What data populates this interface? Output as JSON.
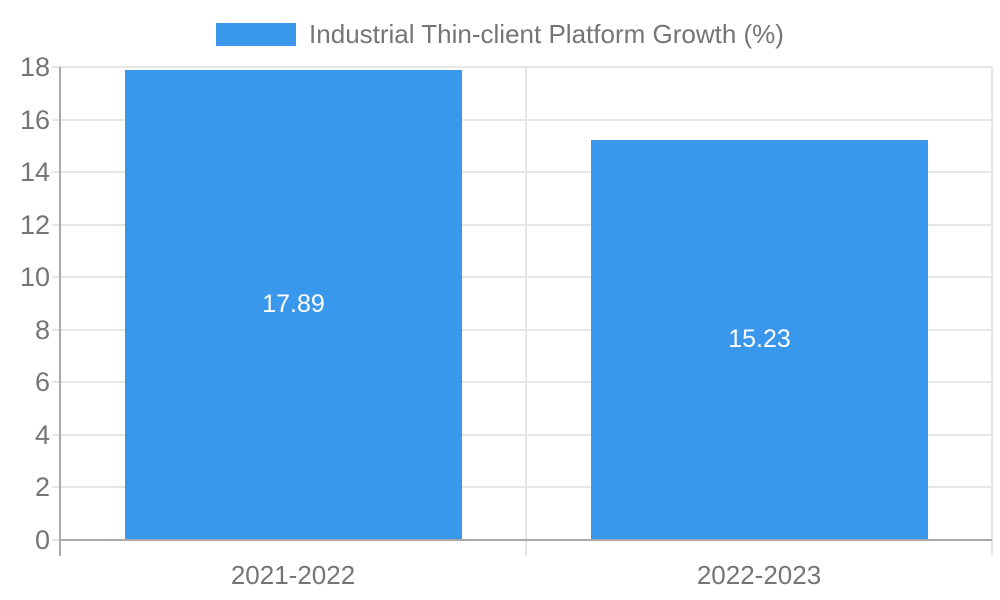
{
  "chart_data": {
    "type": "bar",
    "legend": {
      "label": "Industrial Thin-client Platform Growth (%)",
      "position": "top"
    },
    "categories": [
      "2021-2022",
      "2022-2023"
    ],
    "values": [
      17.89,
      15.23
    ],
    "value_labels": [
      "17.89",
      "15.23"
    ],
    "ylim": [
      0,
      18
    ],
    "yticks": [
      0,
      2,
      4,
      6,
      8,
      10,
      12,
      14,
      16,
      18
    ],
    "grid": true,
    "xlabel": "",
    "ylabel": "",
    "colors": {
      "bar": "#3A98EC",
      "grid": "#e6e6e6",
      "axis": "#aaaaaa",
      "tick_label": "#757575",
      "value_label": "#ffffff"
    }
  }
}
